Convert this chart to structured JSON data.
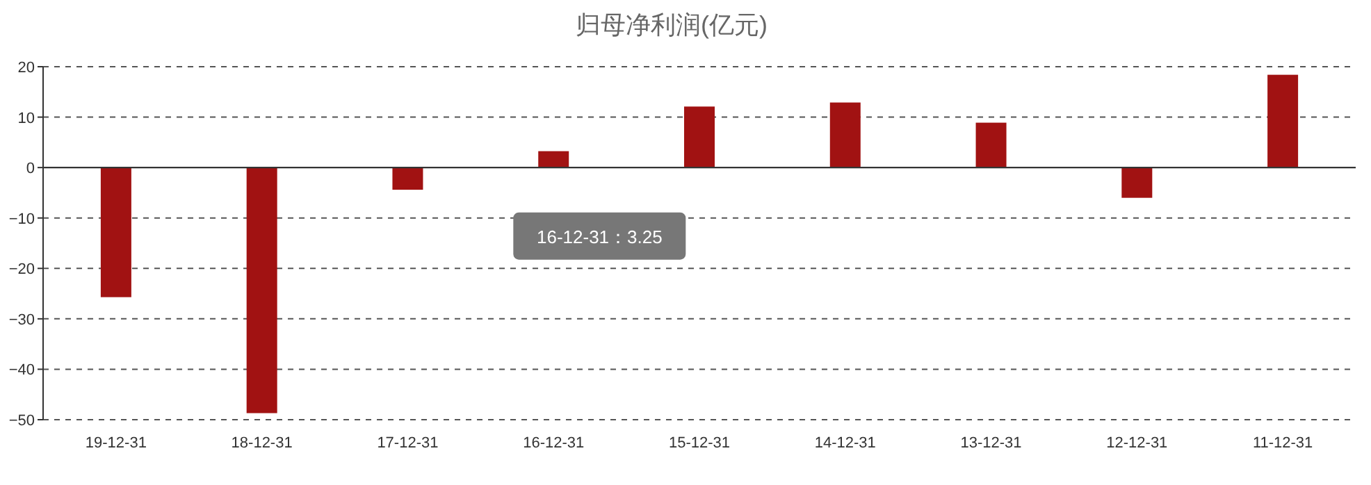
{
  "chart_data": {
    "type": "bar",
    "title": "归母净利润(亿元)",
    "categories": [
      "19-12-31",
      "18-12-31",
      "17-12-31",
      "16-12-31",
      "15-12-31",
      "14-12-31",
      "13-12-31",
      "12-12-31",
      "11-12-31"
    ],
    "values": [
      -25.7,
      -48.7,
      -4.4,
      3.25,
      12.1,
      12.9,
      8.9,
      -6.0,
      18.4
    ],
    "color": "#a11212",
    "ylim": [
      -50,
      20
    ],
    "yticks": [
      -50,
      -40,
      -30,
      -20,
      -10,
      0,
      10,
      20
    ],
    "grid": "y",
    "annotations": [
      "16-12-31：3.25"
    ]
  }
}
